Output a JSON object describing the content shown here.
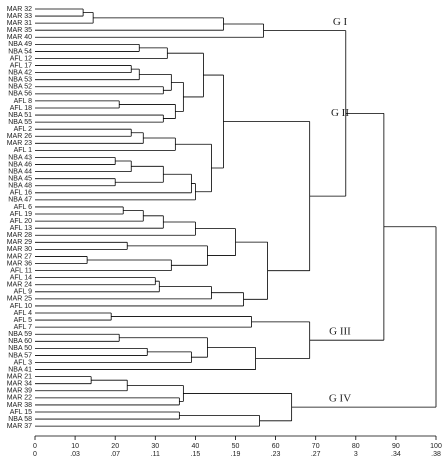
{
  "chart_data": {
    "type": "dendrogram",
    "xlim": [
      0,
      100
    ],
    "xticks": [
      0,
      10,
      20,
      30,
      40,
      50,
      60,
      70,
      80,
      90,
      100
    ],
    "x2ticklabels": [
      "0",
      ".03",
      ".07",
      ".11",
      ".15",
      ".19",
      ".23",
      ".27",
      "3",
      ".34",
      ".38"
    ],
    "color": "#000000",
    "tree": {
      "h": 100,
      "c": [
        {
          "h": 87,
          "c": [
            {
              "h": 77.5,
              "c": [
                {
                  "h": 57,
                  "group": "G I",
                  "c": [
                    {
                      "h": 47,
                      "c": [
                        {
                          "h": 14.5,
                          "c": [
                            {
                              "h": 12,
                              "c": [
                                "MAR 32",
                                "MAR 33"
                              ]
                            },
                            "MAR 31"
                          ]
                        },
                        "MAR 35"
                      ]
                    },
                    "MAR 40"
                  ]
                },
                {
                  "h": 68.5,
                  "c": [
                    {
                      "h": 47,
                      "group": "G II",
                      "c": [
                        {
                          "h": 42,
                          "c": [
                            {
                              "h": 33,
                              "c": [
                                {
                                  "h": 26,
                                  "c": [
                                    "NBA 49",
                                    "NBA 54"
                                  ]
                                },
                                "AFL 12"
                              ]
                            },
                            {
                              "h": 37,
                              "c": [
                                {
                                  "h": 34,
                                  "c": [
                                    {
                                      "h": 26,
                                      "c": [
                                        {
                                          "h": 24,
                                          "c": [
                                            "AFL 17",
                                            "NBA 42"
                                          ]
                                        },
                                        "NBA 53"
                                      ]
                                    },
                                    {
                                      "h": 32,
                                      "c": [
                                        "NBA 52",
                                        "NBA 56"
                                      ]
                                    }
                                  ]
                                },
                                {
                                  "h": 35,
                                  "c": [
                                    {
                                      "h": 21,
                                      "c": [
                                        "AFL 8",
                                        "AFL 18"
                                      ]
                                    },
                                    {
                                      "h": 32,
                                      "c": [
                                        "NBA 51",
                                        "NBA 55"
                                      ]
                                    }
                                  ]
                                }
                              ]
                            }
                          ]
                        },
                        {
                          "h": 44,
                          "c": [
                            {
                              "h": 35,
                              "c": [
                                {
                                  "h": 27,
                                  "c": [
                                    {
                                      "h": 24,
                                      "c": [
                                        "AFL 2",
                                        "MAR 26"
                                      ]
                                    },
                                    "MAR 23"
                                  ]
                                },
                                "AFL 1"
                              ]
                            },
                            {
                              "h": 40,
                              "c": [
                                {
                                  "h": 39,
                                  "c": [
                                    {
                                      "h": 32,
                                      "c": [
                                        {
                                          "h": 24,
                                          "c": [
                                            {
                                              "h": 20,
                                              "c": [
                                                "NBA 43",
                                                "NBA 46"
                                              ]
                                            },
                                            "NBA 44"
                                          ]
                                        },
                                        {
                                          "h": 20,
                                          "c": [
                                            "NBA 45",
                                            "NBA 48"
                                          ]
                                        }
                                      ]
                                    },
                                    "AFL 16"
                                  ]
                                },
                                "NBA 47"
                              ]
                            }
                          ]
                        }
                      ]
                    },
                    {
                      "h": 58,
                      "c": [
                        {
                          "h": 50,
                          "c": [
                            {
                              "h": 40,
                              "c": [
                                {
                                  "h": 32,
                                  "c": [
                                    {
                                      "h": 27,
                                      "c": [
                                        {
                                          "h": 22,
                                          "c": [
                                            "AFL 6",
                                            "AFL 19"
                                          ]
                                        },
                                        "AFL 20"
                                      ]
                                    },
                                    "AFL 13"
                                  ]
                                },
                                "MAR 28"
                              ]
                            },
                            {
                              "h": 43,
                              "c": [
                                {
                                  "h": 23,
                                  "c": [
                                    "MAR 29",
                                    "MAR 30"
                                  ]
                                },
                                {
                                  "h": 34,
                                  "c": [
                                    {
                                      "h": 13,
                                      "c": [
                                        "MAR 27",
                                        "MAR 36"
                                      ]
                                    },
                                    "AFL 11"
                                  ]
                                }
                              ]
                            }
                          ]
                        },
                        {
                          "h": 52,
                          "c": [
                            {
                              "h": 44,
                              "c": [
                                {
                                  "h": 31,
                                  "c": [
                                    {
                                      "h": 30,
                                      "c": [
                                        "AFL 14",
                                        "MAR 24"
                                      ]
                                    },
                                    "AFL 9"
                                  ]
                                },
                                "MAR 25"
                              ]
                            },
                            "AFL 10"
                          ]
                        }
                      ]
                    }
                  ]
                }
              ]
            },
            {
              "h": 68.5,
              "group": "G III",
              "c": [
                {
                  "h": 54,
                  "c": [
                    {
                      "h": 19,
                      "c": [
                        "AFL 4",
                        "AFL 5"
                      ]
                    },
                    "AFL 7"
                  ]
                },
                {
                  "h": 55,
                  "c": [
                    {
                      "h": 43,
                      "c": [
                        {
                          "h": 21,
                          "c": [
                            "NBA 59",
                            "NBA 60"
                          ]
                        },
                        {
                          "h": 39,
                          "c": [
                            {
                              "h": 28,
                              "c": [
                                "NBA 50",
                                "NBA 57"
                              ]
                            },
                            "AFL 3"
                          ]
                        }
                      ]
                    },
                    "NBA 41"
                  ]
                }
              ]
            }
          ]
        },
        {
          "h": 64,
          "group": "G IV",
          "c": [
            {
              "h": 37,
              "c": [
                {
                  "h": 23,
                  "c": [
                    {
                      "h": 14,
                      "c": [
                        "MAR 21",
                        "MAR 34"
                      ]
                    },
                    "MAR 39"
                  ]
                },
                {
                  "h": 36,
                  "c": [
                    "MAR 22",
                    "MAR 38"
                  ]
                }
              ]
            },
            {
              "h": 56,
              "c": [
                {
                  "h": 36,
                  "c": [
                    "AFL 15",
                    "NBA 58"
                  ]
                },
                "MAR 37"
              ]
            }
          ]
        }
      ]
    }
  }
}
